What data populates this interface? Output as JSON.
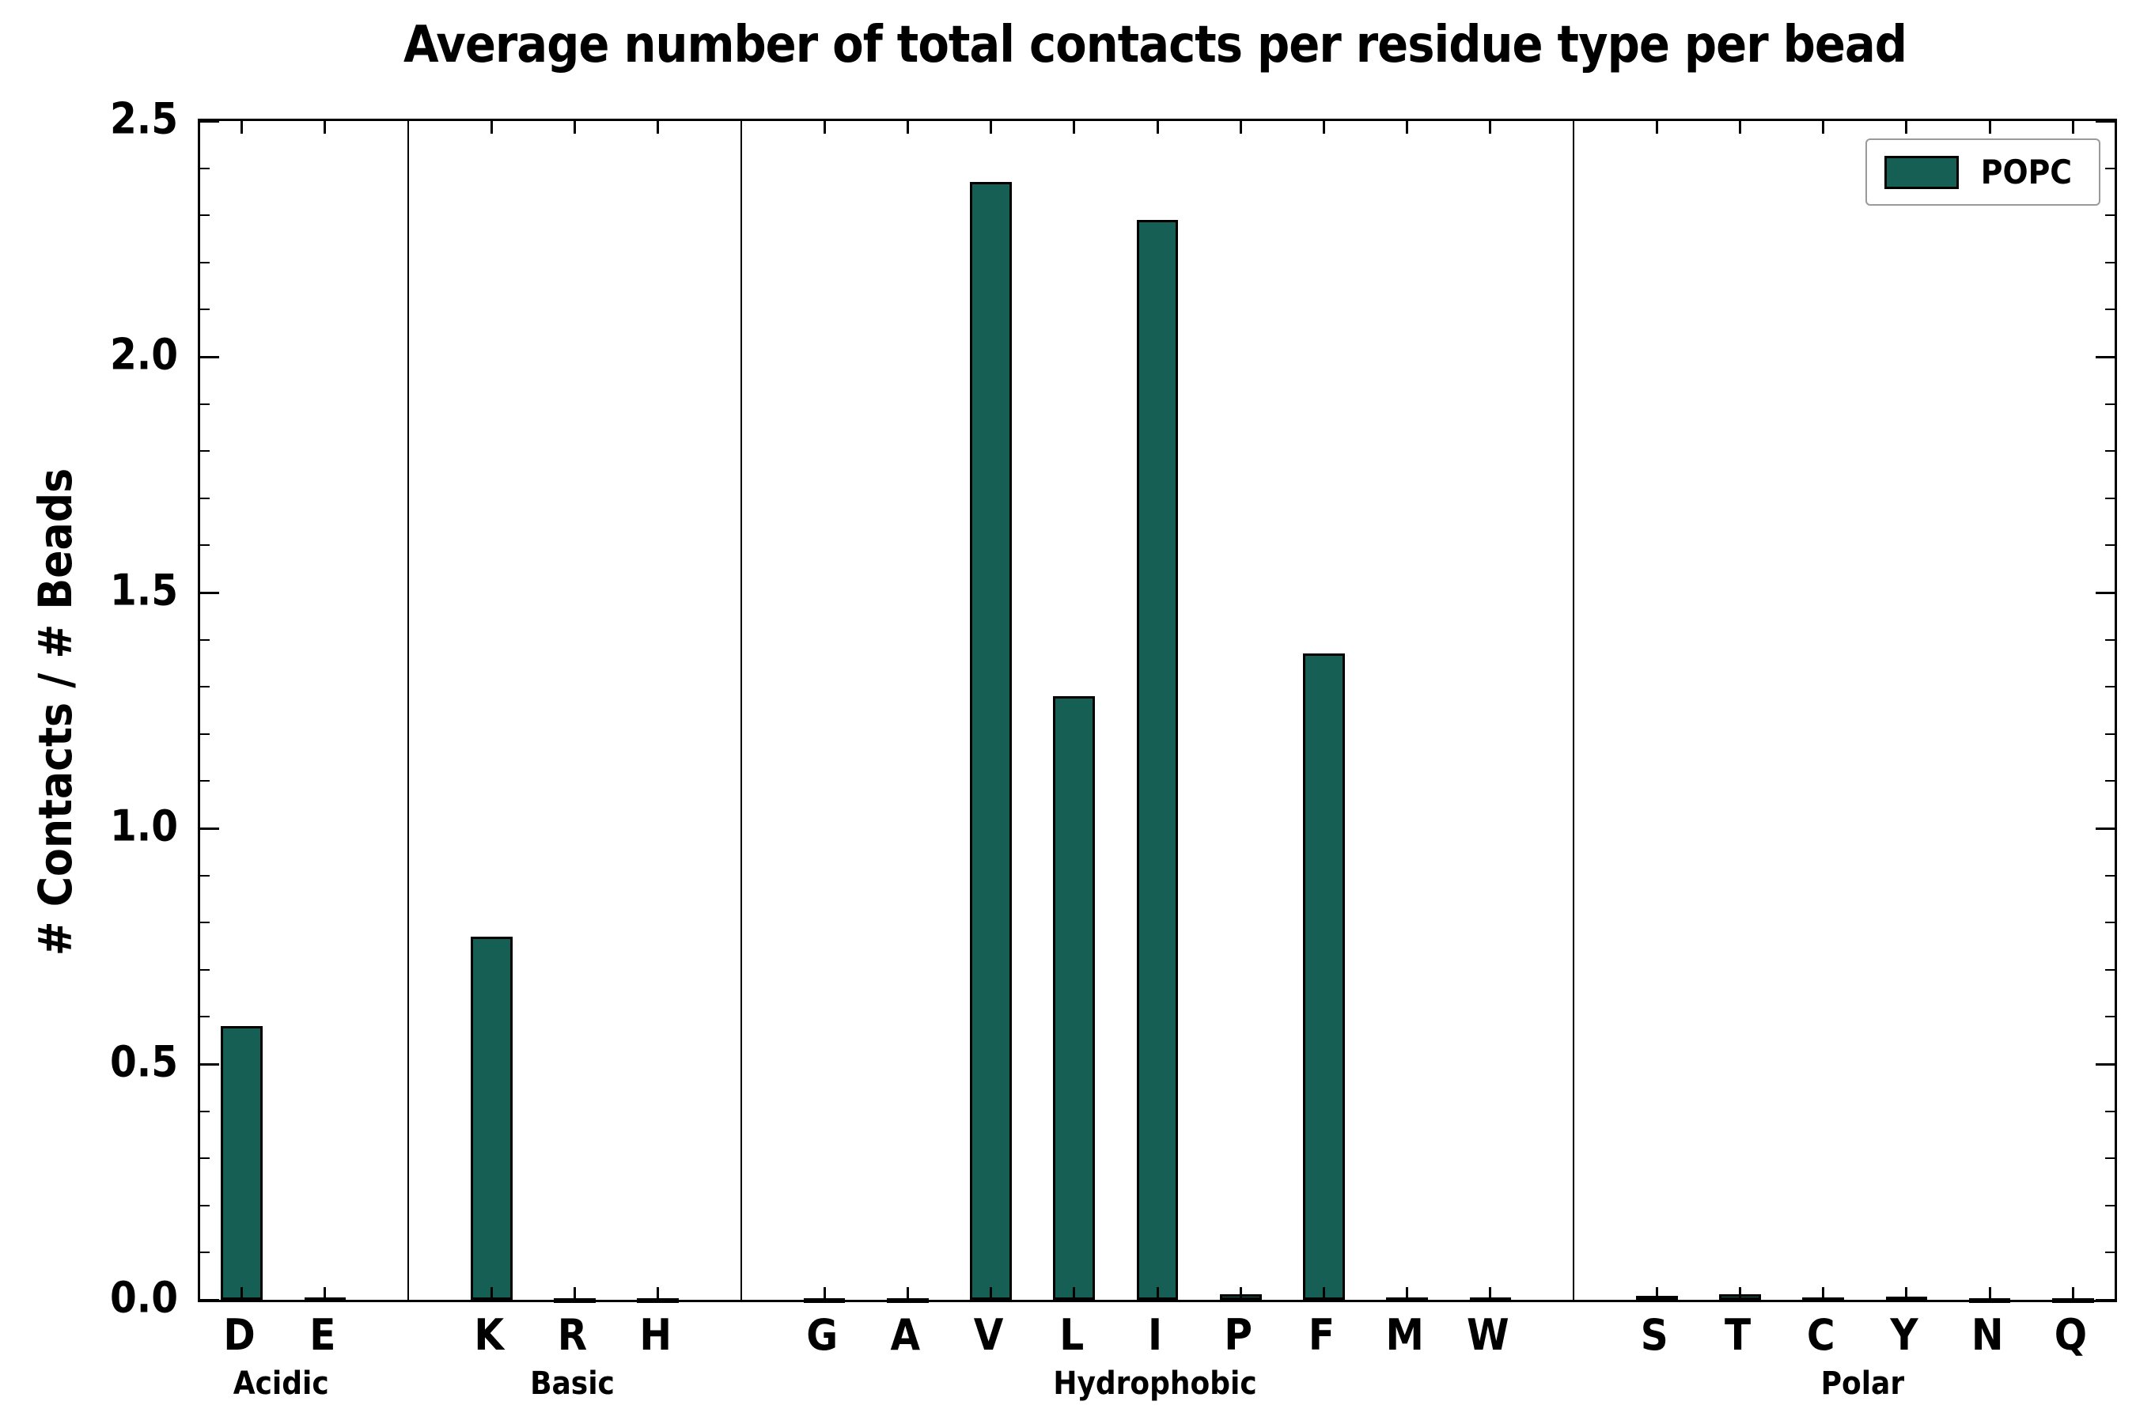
{
  "chart_data": {
    "type": "bar",
    "title": "Average number of total contacts per residue type per bead",
    "ylabel": "# Contacts / # Beads",
    "xlabel": "",
    "ylim": [
      0,
      2.5
    ],
    "yticks": [
      0.0,
      0.5,
      1.0,
      1.5,
      2.0,
      2.5
    ],
    "ytick_labels": [
      "0.0",
      "0.5",
      "1.0",
      "1.5",
      "2.0",
      "2.5"
    ],
    "y_minor_step": 0.1,
    "grid": false,
    "bar_color": "#155f54",
    "bar_edge_color": "#000000",
    "legend": {
      "label": "POPC",
      "position": "upper right"
    },
    "groups": [
      {
        "label": "Acidic",
        "categories": [
          "D",
          "E"
        ],
        "values": [
          0.58,
          0.005
        ]
      },
      {
        "label": "Basic",
        "categories": [
          "K",
          "R",
          "H"
        ],
        "values": [
          0.77,
          0.004,
          0.004
        ]
      },
      {
        "label": "Hydrophobic",
        "categories": [
          "G",
          "A",
          "V",
          "L",
          "I",
          "P",
          "F",
          "M",
          "W"
        ],
        "values": [
          0.004,
          0.004,
          2.37,
          1.28,
          2.29,
          0.012,
          1.37,
          0.005,
          0.005
        ]
      },
      {
        "label": "Polar",
        "categories": [
          "S",
          "T",
          "C",
          "Y",
          "N",
          "Q"
        ],
        "values": [
          0.008,
          0.012,
          0.005,
          0.006,
          0.004,
          0.003
        ]
      }
    ]
  }
}
